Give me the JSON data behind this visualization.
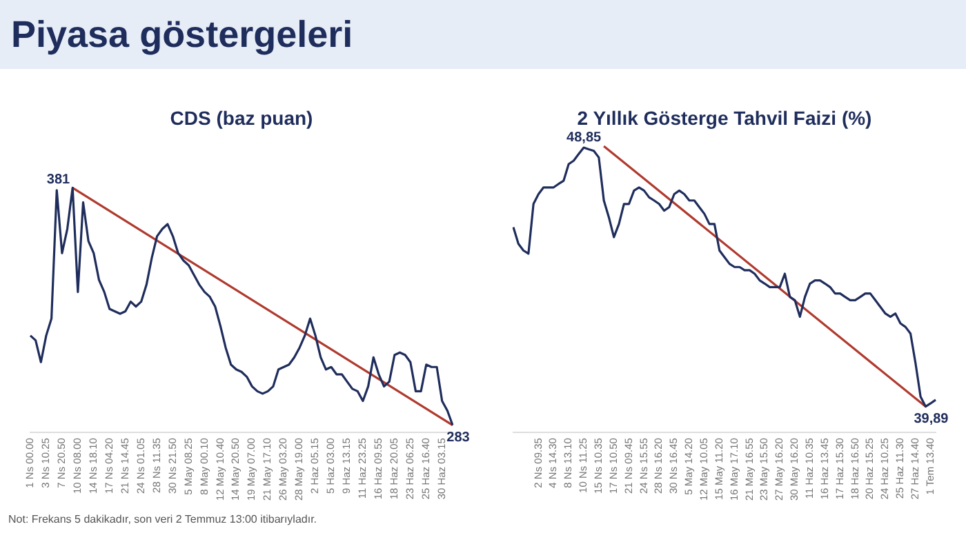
{
  "chart_data": [
    {
      "type": "line",
      "title": "CDS (baz puan)",
      "annotations": [
        "Piyasa göstergeleri",
        "Not: Frekans 5 dakikadır, son veri 2 Temmuz 13:00 itibarıyladır."
      ],
      "categories": [
        "1 Ns 00.00",
        null,
        null,
        "3 Ns 10.25",
        null,
        null,
        "7 Ns 20.50",
        null,
        null,
        "10 Ns 08.00",
        null,
        null,
        "14 Ns 18.10",
        null,
        null,
        "17 Ns 04.20",
        null,
        null,
        "21 Ns 14.45",
        null,
        null,
        "24 Ns 01.05",
        null,
        null,
        "28 Ns 11.35",
        null,
        null,
        "30 Ns 21.50",
        null,
        null,
        "5 May 08.25",
        null,
        null,
        "8 May 00.10",
        null,
        null,
        "12 May 10.40",
        null,
        null,
        "14 May 20.50",
        null,
        null,
        "19 May 07.00",
        null,
        null,
        "21 May 17.10",
        null,
        null,
        "26 May 03.20",
        null,
        null,
        "28 May 19.00",
        null,
        null,
        "2 Haz 05.15",
        null,
        null,
        "5 Haz 03.00",
        null,
        null,
        "9 Haz 13.15",
        null,
        null,
        "11 Haz 23.25",
        null,
        null,
        "16 Haz 09.55",
        null,
        null,
        "18 Haz 20.05",
        null,
        null,
        "23 Haz 06.25",
        null,
        null,
        "25 Haz 16.40",
        null,
        null,
        "30 Haz 03.15",
        null,
        null
      ],
      "series": [
        {
          "color": "#1f2d5c",
          "values": [
            320,
            318,
            309,
            320,
            327,
            380,
            354,
            364,
            381,
            338,
            375,
            359,
            354,
            343,
            338,
            331,
            330,
            329,
            330,
            334,
            332,
            334,
            341,
            352,
            361,
            364,
            366,
            361,
            354,
            351,
            349,
            345,
            341,
            338,
            336,
            332,
            324,
            315,
            308,
            306,
            305,
            303,
            299,
            297,
            296,
            297,
            299,
            306,
            307,
            308,
            311,
            315,
            320,
            327,
            320,
            311,
            306,
            307,
            304,
            304,
            301,
            298,
            297,
            293,
            299,
            311,
            304,
            299,
            301,
            312,
            313,
            312,
            309,
            297,
            297,
            308,
            307,
            307,
            293,
            289,
            283
          ]
        },
        {
          "color": "#b03a2e",
          "values": [
            null,
            null,
            null,
            null,
            null,
            null,
            null,
            null,
            381,
            null,
            null,
            null,
            null,
            null,
            null,
            null,
            null,
            null,
            null,
            null,
            null,
            null,
            null,
            null,
            null,
            null,
            null,
            null,
            null,
            null,
            null,
            null,
            null,
            null,
            null,
            null,
            null,
            null,
            null,
            null,
            null,
            null,
            null,
            null,
            null,
            null,
            null,
            null,
            null,
            null,
            null,
            null,
            null,
            null,
            null,
            null,
            null,
            null,
            null,
            null,
            null,
            null,
            null,
            null,
            null,
            null,
            null,
            null,
            null,
            null,
            null,
            null,
            null,
            null,
            null,
            null,
            null,
            null,
            null,
            null,
            283
          ],
          "value_labels": [
            null,
            null,
            null,
            null,
            null,
            null,
            null,
            null,
            "381",
            null,
            null,
            null,
            null,
            null,
            null,
            null,
            null,
            null,
            null,
            null,
            null,
            null,
            null,
            null,
            null,
            null,
            null,
            null,
            null,
            null,
            null,
            null,
            null,
            null,
            null,
            null,
            null,
            null,
            null,
            null,
            null,
            null,
            null,
            null,
            null,
            null,
            null,
            null,
            null,
            null,
            null,
            null,
            null,
            null,
            null,
            null,
            null,
            null,
            null,
            null,
            null,
            null,
            null,
            null,
            null,
            null,
            null,
            null,
            null,
            null,
            null,
            null,
            null,
            null,
            null,
            null,
            null,
            null,
            null,
            null,
            "283"
          ]
        }
      ],
      "tick_labels": "x",
      "marker": "none",
      "legend": false,
      "grid": false
    },
    {
      "type": "line",
      "title": "2 Yıllık Gösterge Tahvil Faizi (%)",
      "categories": [
        null,
        null,
        null,
        null,
        null,
        "2 Ns 09.35",
        null,
        null,
        "4 Ns 14.30",
        null,
        null,
        "8 Ns 13.10",
        null,
        null,
        "10 Ns 11.25",
        null,
        null,
        "15 Ns 10.35",
        null,
        null,
        "17 Ns 10.50",
        null,
        null,
        "21 Ns 09.45",
        null,
        null,
        "24 Ns 15.55",
        null,
        null,
        "28 Ns 16.20",
        null,
        null,
        "30 Ns 16.45",
        null,
        null,
        "5 May 14.20",
        null,
        null,
        "12 May 10.05",
        null,
        null,
        "15 May 11.20",
        null,
        null,
        "16 May 17.10",
        null,
        null,
        "21 May 16.55",
        null,
        null,
        "23 May 15.50",
        null,
        null,
        "27 May 16.20",
        null,
        null,
        "30 May 16.20",
        null,
        null,
        "11 Haz 10.35",
        null,
        null,
        "16 Haz 13.45",
        null,
        null,
        "17 Haz 15.30",
        null,
        null,
        "18 Haz 16.50",
        null,
        null,
        "20 Haz 15.25",
        null,
        null,
        "24 Haz 10.25",
        null,
        null,
        "25 Haz 11.30",
        null,
        null,
        "27 Haz 14.40",
        null,
        null,
        "1 Tem 13.40",
        null
      ],
      "series": [
        {
          "color": "#1f2d5c",
          "values": [
            46.06,
            45.49,
            45.26,
            45.15,
            46.86,
            47.2,
            47.43,
            47.43,
            47.43,
            47.55,
            47.66,
            48.23,
            48.35,
            48.58,
            48.8,
            48.74,
            48.69,
            48.46,
            46.98,
            46.4,
            45.72,
            46.17,
            46.86,
            46.86,
            47.32,
            47.43,
            47.32,
            47.09,
            46.98,
            46.86,
            46.63,
            46.75,
            47.2,
            47.32,
            47.2,
            46.98,
            46.98,
            46.75,
            46.52,
            46.17,
            46.17,
            45.26,
            45.03,
            44.8,
            44.69,
            44.69,
            44.58,
            44.58,
            44.46,
            44.23,
            44.12,
            44,
            44,
            44,
            44.46,
            43.66,
            43.55,
            42.98,
            43.66,
            44.12,
            44.23,
            44.23,
            44.12,
            44,
            43.78,
            43.78,
            43.66,
            43.55,
            43.55,
            43.66,
            43.78,
            43.78,
            43.55,
            43.32,
            43.09,
            42.98,
            43.09,
            42.75,
            42.63,
            42.4,
            41.38,
            40.23,
            39.89,
            40,
            40.12
          ]
        },
        {
          "color": "#b03a2e",
          "values": [
            null,
            null,
            null,
            null,
            null,
            null,
            null,
            null,
            null,
            null,
            null,
            null,
            null,
            null,
            null,
            null,
            null,
            null,
            48.85,
            null,
            null,
            null,
            null,
            null,
            null,
            null,
            null,
            null,
            null,
            null,
            null,
            null,
            null,
            null,
            null,
            null,
            null,
            null,
            null,
            null,
            null,
            null,
            null,
            null,
            null,
            null,
            null,
            null,
            null,
            null,
            null,
            null,
            null,
            null,
            null,
            null,
            null,
            null,
            null,
            null,
            null,
            null,
            null,
            null,
            null,
            null,
            null,
            null,
            null,
            null,
            null,
            null,
            null,
            null,
            null,
            null,
            null,
            null,
            null,
            null,
            null,
            null,
            39.89,
            null,
            null
          ],
          "value_labels": [
            null,
            null,
            null,
            null,
            null,
            null,
            null,
            null,
            null,
            null,
            null,
            null,
            null,
            null,
            null,
            null,
            null,
            null,
            "48,85",
            null,
            null,
            null,
            null,
            null,
            null,
            null,
            null,
            null,
            null,
            null,
            null,
            null,
            null,
            null,
            null,
            null,
            null,
            null,
            null,
            null,
            null,
            null,
            null,
            null,
            null,
            null,
            null,
            null,
            null,
            null,
            null,
            null,
            null,
            null,
            null,
            null,
            null,
            null,
            null,
            null,
            null,
            null,
            null,
            null,
            null,
            null,
            null,
            null,
            null,
            null,
            null,
            null,
            null,
            null,
            null,
            null,
            null,
            null,
            null,
            null,
            null,
            null,
            "39,89",
            null,
            null
          ]
        }
      ],
      "tick_labels": "x",
      "marker": "none",
      "legend": false,
      "grid": false
    }
  ]
}
